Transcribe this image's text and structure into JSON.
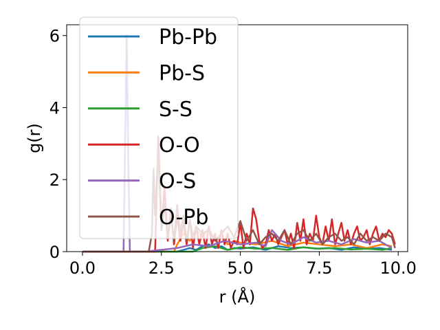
{
  "chart_data": {
    "type": "line",
    "title": "",
    "xlabel": "r (Å)",
    "ylabel": "g(r)",
    "xlim": [
      -0.5,
      10.3
    ],
    "ylim": [
      0,
      6.3
    ],
    "xticks": [
      "0.0",
      "2.5",
      "5.0",
      "7.5",
      "10.0"
    ],
    "xtick_values": [
      0,
      2.5,
      5,
      7.5,
      10
    ],
    "yticks": [
      "0",
      "2",
      "4",
      "6"
    ],
    "ytick_values": [
      0,
      2,
      4,
      6
    ],
    "grid": false,
    "legend_position": "upper-left",
    "series": [
      {
        "name": "Pb-Pb",
        "color": "#1f77b4",
        "x": [
          0,
          3.0,
          3.2,
          3.4,
          3.6,
          3.8,
          4.0,
          4.2,
          4.4,
          4.6,
          4.8,
          5.0,
          5.4,
          5.8,
          6.2,
          6.6,
          7.0,
          7.4,
          7.8,
          8.2,
          8.6,
          9.0,
          9.4,
          9.8
        ],
        "y": [
          0,
          0,
          0.05,
          0.1,
          0.05,
          0.15,
          0.2,
          0.1,
          0.15,
          0.05,
          0.1,
          0.08,
          0.12,
          0.05,
          0.15,
          0.1,
          0.12,
          0.08,
          0.1,
          0.05,
          0.12,
          0.08,
          0.1,
          0.05
        ]
      },
      {
        "name": "Pb-S",
        "color": "#ff7f0e",
        "x": [
          0,
          2.9,
          3.0,
          3.2,
          3.4,
          3.6,
          3.8,
          4.0,
          4.2,
          4.4,
          4.6,
          4.8,
          5.0,
          5.5,
          6.0,
          6.5,
          7.0,
          7.5,
          8.0,
          8.5,
          9.0,
          9.5,
          9.8
        ],
        "y": [
          0,
          0,
          0.2,
          0.5,
          0.3,
          0.6,
          0.4,
          0.65,
          0.3,
          0.45,
          0.2,
          0.3,
          0.25,
          0.2,
          0.3,
          0.15,
          0.25,
          0.2,
          0.15,
          0.2,
          0.1,
          0.2,
          0.15
        ]
      },
      {
        "name": "S-S",
        "color": "#2ca02c",
        "x": [
          0,
          3.5,
          3.8,
          4.2,
          4.6,
          5.0,
          5.5,
          6.0,
          6.5,
          7.0,
          7.5,
          8.0,
          8.5,
          9.0,
          9.5,
          9.8
        ],
        "y": [
          0,
          0,
          0.1,
          0.15,
          0.05,
          0.12,
          0.08,
          0.1,
          0.05,
          0.12,
          0.08,
          0.1,
          0.06,
          0.08,
          0.05,
          0.1
        ]
      },
      {
        "name": "O-O",
        "color": "#d62728",
        "x": [
          0,
          2.3,
          2.35,
          2.4,
          2.45,
          2.5,
          2.6,
          2.7,
          2.8,
          2.9,
          3.0,
          3.1,
          3.2,
          3.3,
          3.4,
          3.5,
          3.6,
          3.7,
          3.8,
          3.9,
          4.0,
          4.1,
          4.2,
          4.3,
          4.4,
          4.5,
          4.6,
          4.7,
          4.8,
          4.9,
          5.0,
          5.1,
          5.2,
          5.3,
          5.4,
          5.5,
          5.6,
          5.7,
          5.8,
          5.9,
          6.0,
          6.1,
          6.2,
          6.3,
          6.4,
          6.5,
          6.6,
          6.7,
          6.8,
          6.9,
          7.0,
          7.1,
          7.2,
          7.3,
          7.4,
          7.5,
          7.6,
          7.7,
          7.8,
          7.9,
          8.0,
          8.1,
          8.2,
          8.3,
          8.4,
          8.5,
          8.6,
          8.7,
          8.8,
          8.9,
          9.0,
          9.1,
          9.2,
          9.3,
          9.4,
          9.5,
          9.6,
          9.7,
          9.8,
          9.9
        ],
        "y": [
          0,
          0,
          1.5,
          3.2,
          2.0,
          0.6,
          1.8,
          0.3,
          1.2,
          0.2,
          1.0,
          0.3,
          0.8,
          0.2,
          0.9,
          0.1,
          0.7,
          0.2,
          0.6,
          0.1,
          0.7,
          0.2,
          0.5,
          0.1,
          0.6,
          0.2,
          0.5,
          0.1,
          0.3,
          0.2,
          0.8,
          0.1,
          0.5,
          0.2,
          1.2,
          0.9,
          0.3,
          0.1,
          0.2,
          0.6,
          0.3,
          0.5,
          0.2,
          0.4,
          0.6,
          0.2,
          0.5,
          0.1,
          0.8,
          0.3,
          0.9,
          0.2,
          0.5,
          0.3,
          1.0,
          0.4,
          0.2,
          0.7,
          0.3,
          0.9,
          0.2,
          0.5,
          0.8,
          0.3,
          0.6,
          0.2,
          0.5,
          0.7,
          0.3,
          0.4,
          0.6,
          0.2,
          0.5,
          0.7,
          0.3,
          0.5,
          0.4,
          0.6,
          0.5,
          0.2
        ]
      },
      {
        "name": "O-S",
        "color": "#9467bd",
        "x": [
          0,
          1.2,
          1.3,
          1.35,
          1.4,
          1.45,
          1.5,
          1.6,
          2.0,
          2.5,
          3.0,
          3.5,
          4.0,
          4.5,
          5.0,
          5.5,
          5.8,
          6.0,
          6.3,
          6.6,
          7.0,
          7.4,
          7.8,
          8.2,
          8.6,
          9.0,
          9.4,
          9.8
        ],
        "y": [
          0,
          0,
          0,
          3.0,
          6.0,
          2.5,
          0,
          0,
          0,
          0.05,
          0.1,
          0.2,
          0.15,
          0.3,
          0.2,
          0.25,
          0.15,
          0.6,
          0.3,
          0.2,
          0.4,
          0.25,
          0.3,
          0.2,
          0.35,
          0.25,
          0.3,
          0.1
        ]
      },
      {
        "name": "O-Pb",
        "color": "#8c564b",
        "x": [
          0,
          2.1,
          2.2,
          2.25,
          2.3,
          2.4,
          2.5,
          2.6,
          2.7,
          2.8,
          2.9,
          3.0,
          3.1,
          3.2,
          3.3,
          3.4,
          3.5,
          3.6,
          3.8,
          4.0,
          4.2,
          4.4,
          4.6,
          4.8,
          5.0,
          5.2,
          5.4,
          5.6,
          5.8,
          6.0,
          6.2,
          6.4,
          6.6,
          6.8,
          7.0,
          7.2,
          7.4,
          7.6,
          7.8,
          8.0,
          8.2,
          8.4,
          8.6,
          8.8,
          9.0,
          9.2,
          9.4,
          9.6,
          9.8,
          9.9
        ],
        "y": [
          0,
          0,
          0.5,
          2.3,
          1.0,
          2.8,
          0.6,
          1.3,
          0.4,
          1.0,
          0.3,
          1.3,
          0.5,
          1.0,
          0.3,
          0.9,
          0.4,
          0.7,
          0.5,
          0.6,
          0.3,
          0.5,
          0.7,
          0.4,
          0.85,
          0.3,
          0.6,
          0.2,
          0.4,
          0.5,
          0.3,
          0.6,
          0.2,
          0.5,
          0.6,
          0.3,
          0.5,
          0.2,
          0.4,
          0.5,
          0.3,
          0.4,
          0.2,
          0.5,
          0.3,
          0.4,
          0.3,
          0.5,
          0.4,
          0.1
        ]
      }
    ]
  }
}
